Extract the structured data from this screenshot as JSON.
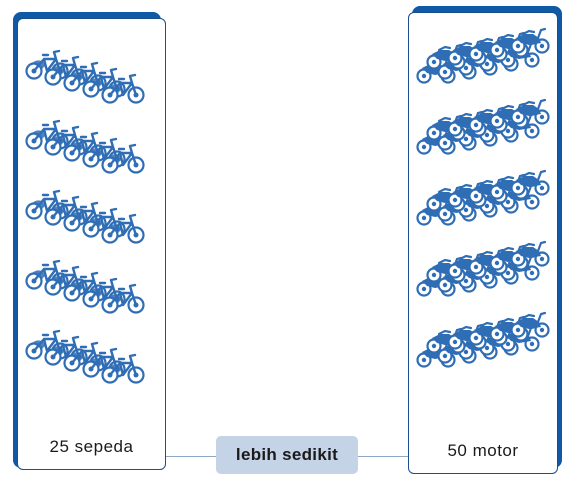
{
  "left_panel": {
    "label": "25 sepeda",
    "item_icon": "bicycle-icon",
    "rows": 5,
    "per_row": 5
  },
  "right_panel": {
    "label": "50 motor",
    "item_icon": "motorcycle-icon",
    "rows": 5,
    "per_row": 10
  },
  "comparison": {
    "label": "lebih sedikit"
  },
  "colors": {
    "frame_dark": "#0f5aa6",
    "icon_blue": "#2f6db5",
    "badge_bg": "#c5d3e6"
  }
}
